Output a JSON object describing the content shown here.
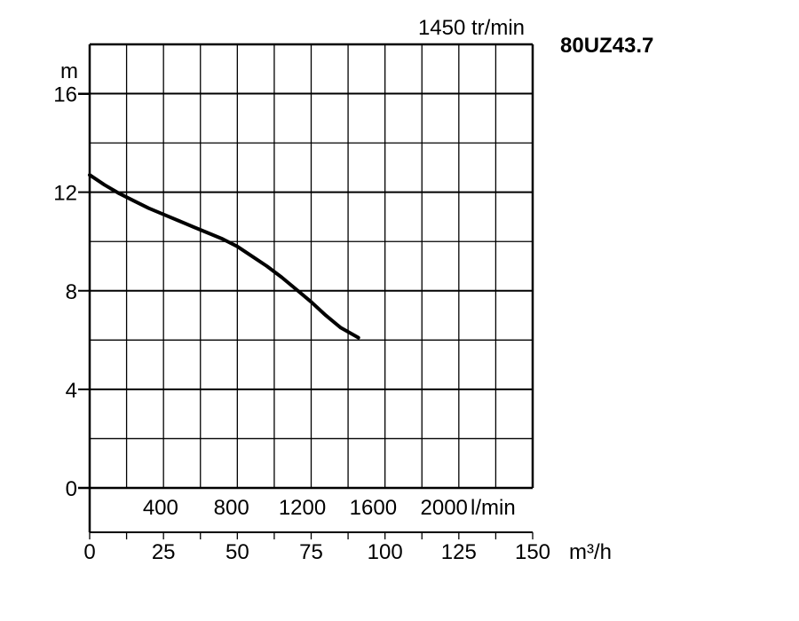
{
  "chart_data": {
    "type": "line",
    "title": "80UZ43.7",
    "subtitle": "1450 tr/min",
    "ylabel": "m",
    "x_unit_label": "m³/h",
    "flow_unit_label": "l/min",
    "xlim": [
      0,
      150
    ],
    "ylim": [
      0,
      18
    ],
    "x_ticks": [
      "0",
      "25",
      "50",
      "75",
      "100",
      "125",
      "150"
    ],
    "y_ticks": [
      "0",
      "4",
      "8",
      "12",
      "16"
    ],
    "flow_ticks": [
      "400",
      "800",
      "1200",
      "1600",
      "2000"
    ],
    "grid": true,
    "series": [
      {
        "x": [
          0,
          5,
          10,
          15,
          20,
          25,
          30,
          35,
          40,
          45,
          50,
          55,
          60,
          65,
          70,
          75,
          80,
          85,
          91
        ],
        "y": [
          12.7,
          12.3,
          11.95,
          11.65,
          11.35,
          11.1,
          10.85,
          10.6,
          10.35,
          10.1,
          9.8,
          9.4,
          9.0,
          8.55,
          8.05,
          7.55,
          7.0,
          6.5,
          6.1
        ]
      }
    ]
  }
}
